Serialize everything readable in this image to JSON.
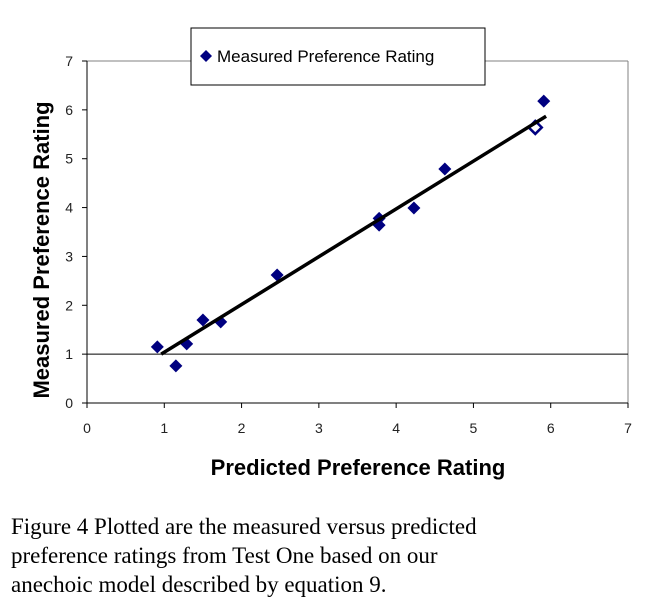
{
  "chart_data": {
    "type": "scatter",
    "title": "",
    "xlabel": "Predicted Preference Rating",
    "ylabel": "Measured Preference Rating",
    "xlim": [
      0,
      7
    ],
    "ylim": [
      0,
      7
    ],
    "x_ticks": [
      "0",
      "1",
      "2",
      "3",
      "4",
      "5",
      "6",
      "7"
    ],
    "y_ticks": [
      "0",
      "1",
      "2",
      "3",
      "4",
      "5",
      "6",
      "7"
    ],
    "grid": false,
    "reference_line_y": 1,
    "legend": {
      "position": "top-center",
      "entries": [
        "Measured Preference Rating"
      ]
    },
    "series": [
      {
        "name": "Measured Preference Rating",
        "color": "#000080",
        "marker": "diamond",
        "x": [
          0.91,
          1.15,
          1.29,
          1.5,
          1.73,
          2.46,
          3.78,
          3.78,
          4.23,
          4.63,
          5.8,
          5.91
        ],
        "y": [
          1.15,
          0.76,
          1.21,
          1.7,
          1.66,
          2.62,
          3.78,
          3.64,
          3.99,
          4.79,
          5.64,
          6.18
        ],
        "hollow": [
          false,
          false,
          false,
          false,
          false,
          false,
          false,
          false,
          false,
          false,
          true,
          false
        ]
      }
    ],
    "trendline": {
      "x": [
        0.96,
        5.94
      ],
      "y": [
        1.0,
        5.87
      ],
      "color": "#000000"
    }
  },
  "caption": {
    "lines": [
      "Figure 4 Plotted are the measured versus predicted",
      "preference ratings from Test One based on our",
      "anechoic model described by equation 9."
    ]
  }
}
